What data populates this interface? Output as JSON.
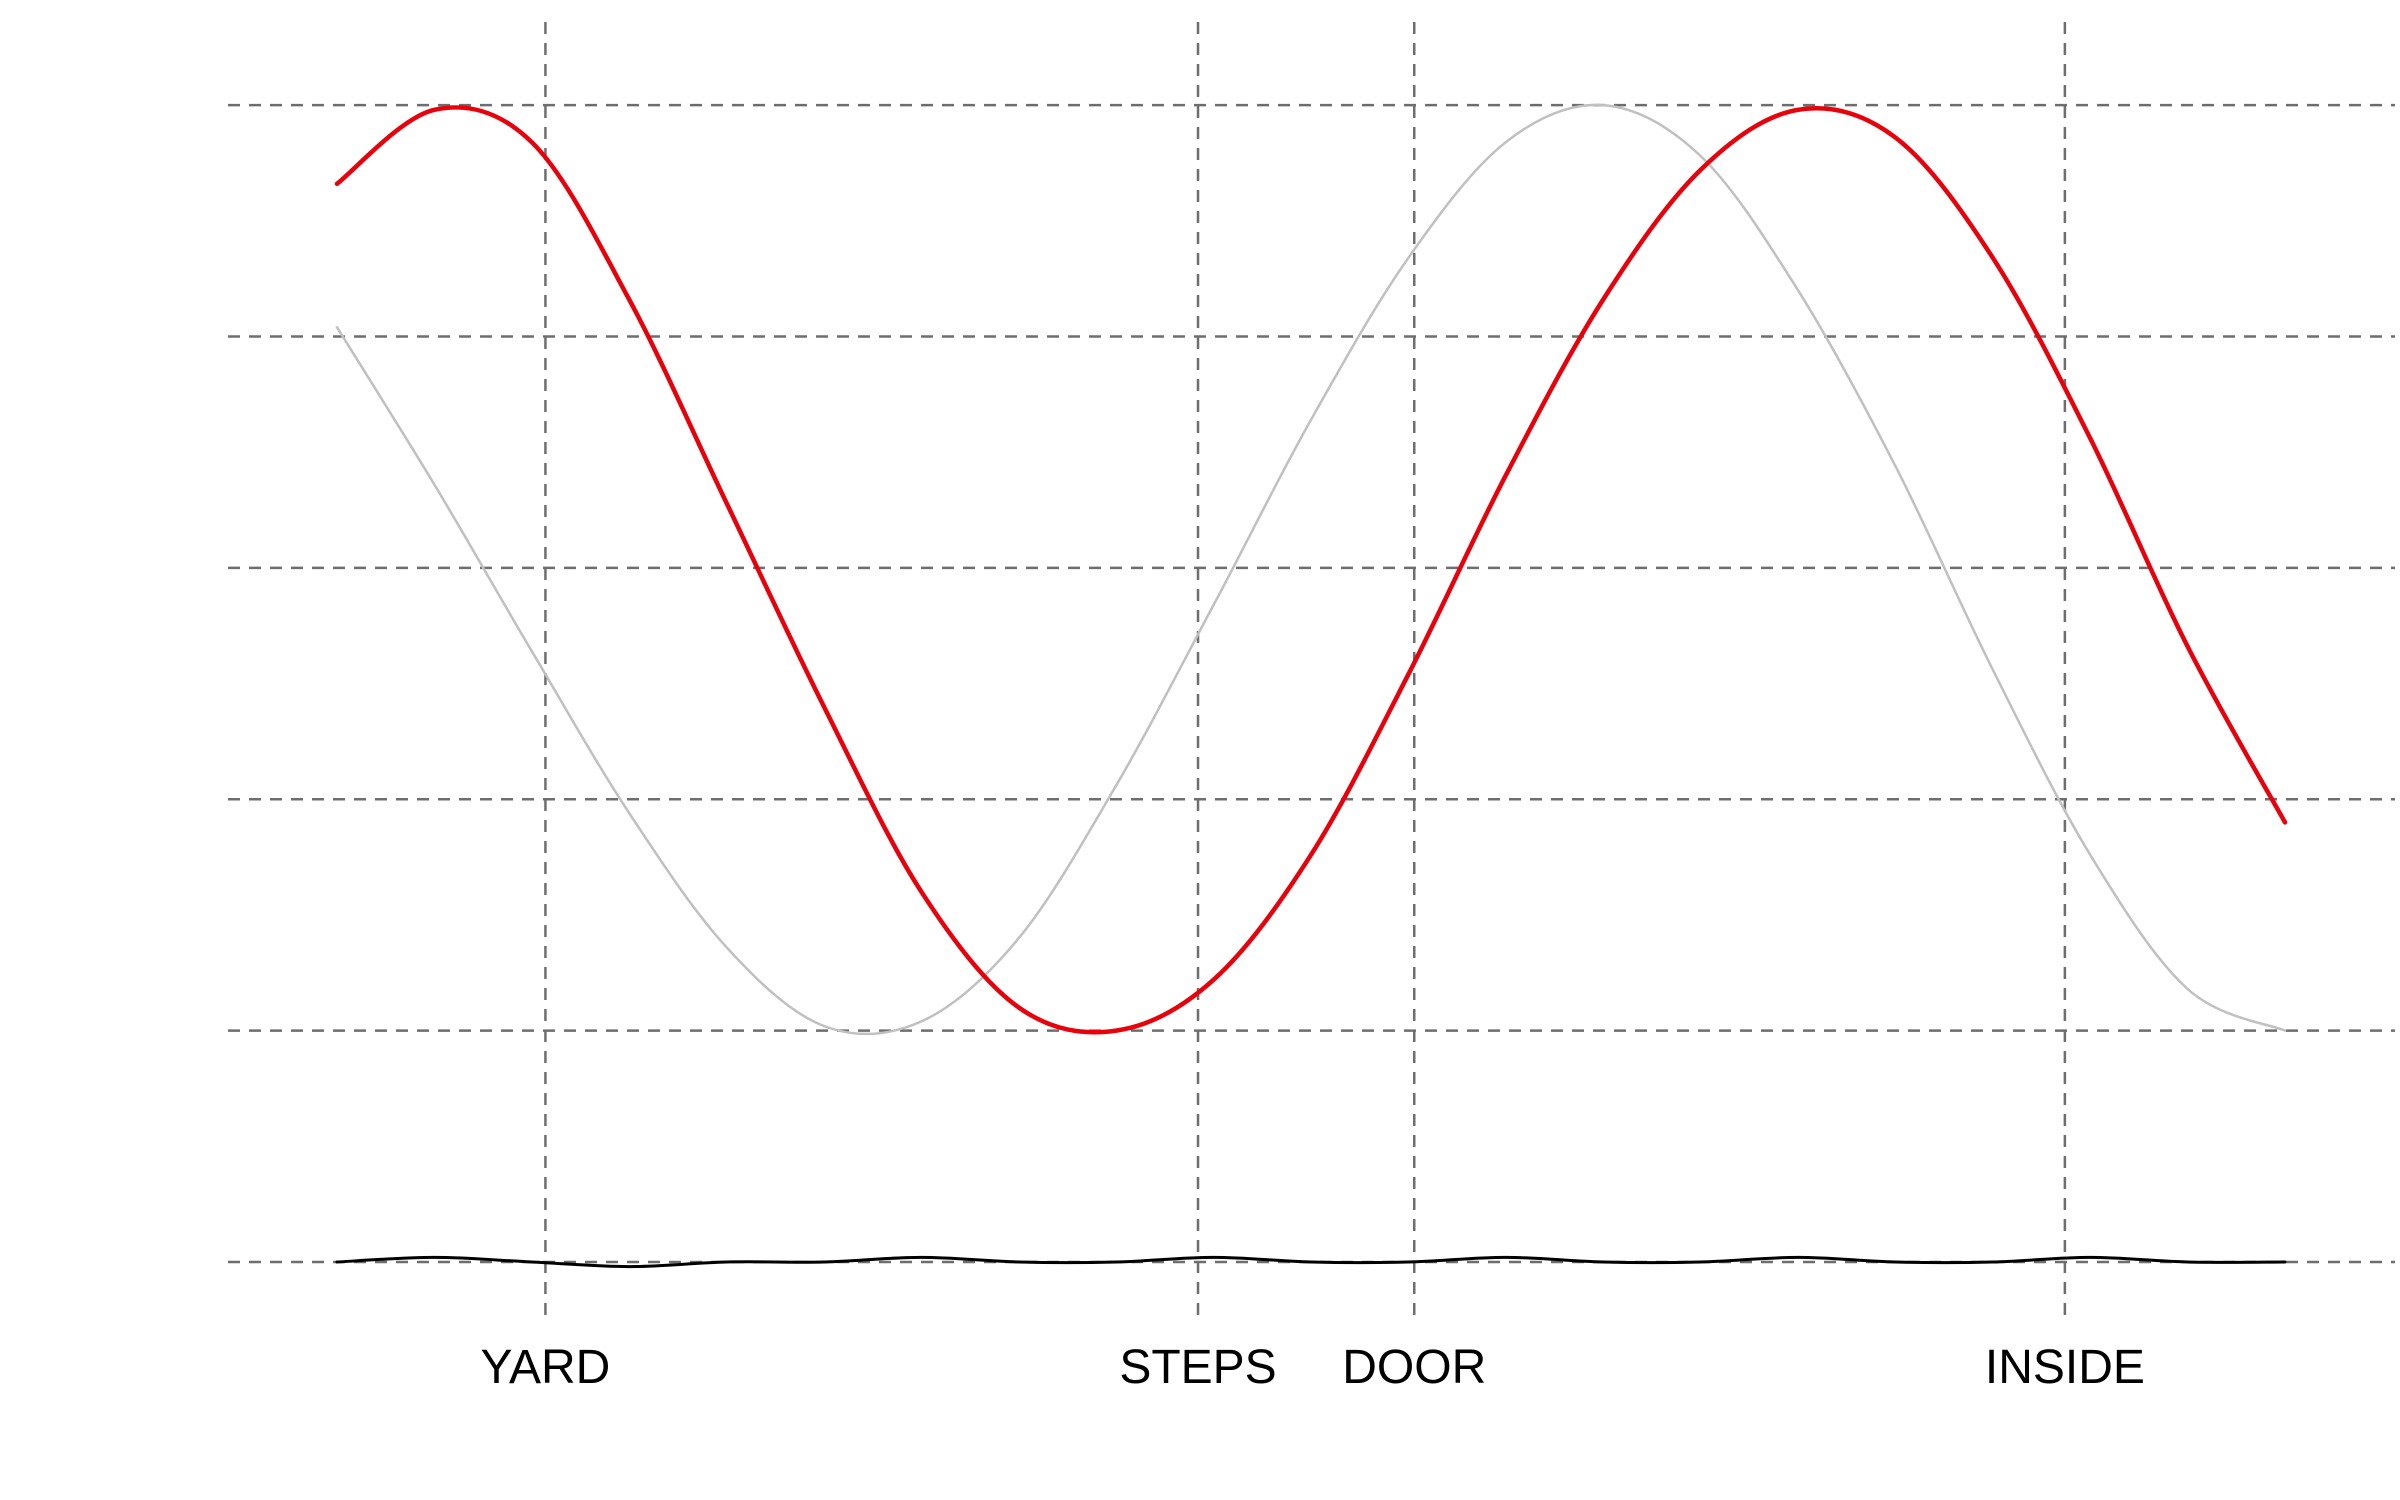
{
  "chart_data": {
    "type": "line",
    "title": "",
    "xlabel": "",
    "ylabel": "",
    "xlim": [
      0,
      10
    ],
    "ylim": [
      -1.5,
      1.05
    ],
    "x_ticks": [
      {
        "value": 1.07,
        "label": "YARD"
      },
      {
        "value": 4.42,
        "label": "STEPS"
      },
      {
        "value": 5.53,
        "label": "DOOR"
      },
      {
        "value": 8.87,
        "label": "INSIDE"
      }
    ],
    "y_gridlines": [
      -1.5,
      -1.0,
      -0.5,
      0.0,
      0.5,
      1.0
    ],
    "grid": true,
    "legend": "none",
    "series": [
      {
        "name": "",
        "color": "#c0c0c0",
        "stroke": 2.5,
        "x": [
          0.0,
          0.5,
          1.0,
          1.5,
          2.0,
          2.5,
          3.0,
          3.5,
          4.0,
          4.5,
          5.0,
          5.5,
          6.0,
          6.5,
          7.0,
          7.5,
          8.0,
          8.5,
          9.0,
          9.5,
          10.0
        ],
        "y": [
          0.52,
          0.18,
          -0.18,
          -0.53,
          -0.82,
          -0.99,
          -0.98,
          -0.8,
          -0.47,
          -0.08,
          0.32,
          0.67,
          0.92,
          1.0,
          0.89,
          0.6,
          0.22,
          -0.22,
          -0.62,
          -0.91,
          -1.0
        ]
      },
      {
        "name": "",
        "color": "#e8000b",
        "stroke": 4.5,
        "x": [
          0.0,
          0.5,
          1.0,
          1.5,
          2.0,
          2.5,
          3.0,
          3.5,
          4.0,
          4.5,
          5.0,
          5.5,
          6.0,
          6.5,
          7.0,
          7.5,
          8.0,
          8.5,
          9.0,
          9.5,
          10.0
        ],
        "y": [
          0.83,
          0.99,
          0.92,
          0.58,
          0.14,
          -0.3,
          -0.7,
          -0.95,
          -1.0,
          -0.89,
          -0.62,
          -0.23,
          0.2,
          0.58,
          0.86,
          0.99,
          0.93,
          0.67,
          0.28,
          -0.17,
          -0.55
        ]
      },
      {
        "name": "",
        "color": "#000000",
        "stroke": 3,
        "x": [
          0.0,
          0.5,
          1.0,
          1.5,
          2.0,
          2.5,
          3.0,
          3.5,
          4.0,
          4.5,
          5.0,
          5.5,
          6.0,
          6.5,
          7.0,
          7.5,
          8.0,
          8.5,
          9.0,
          9.5,
          10.0
        ],
        "y": [
          -1.5,
          -1.49,
          -1.5,
          -1.51,
          -1.5,
          -1.5,
          -1.49,
          -1.5,
          -1.5,
          -1.49,
          -1.5,
          -1.5,
          -1.49,
          -1.5,
          -1.5,
          -1.49,
          -1.5,
          -1.5,
          -1.49,
          -1.5,
          -1.5
        ]
      }
    ]
  }
}
